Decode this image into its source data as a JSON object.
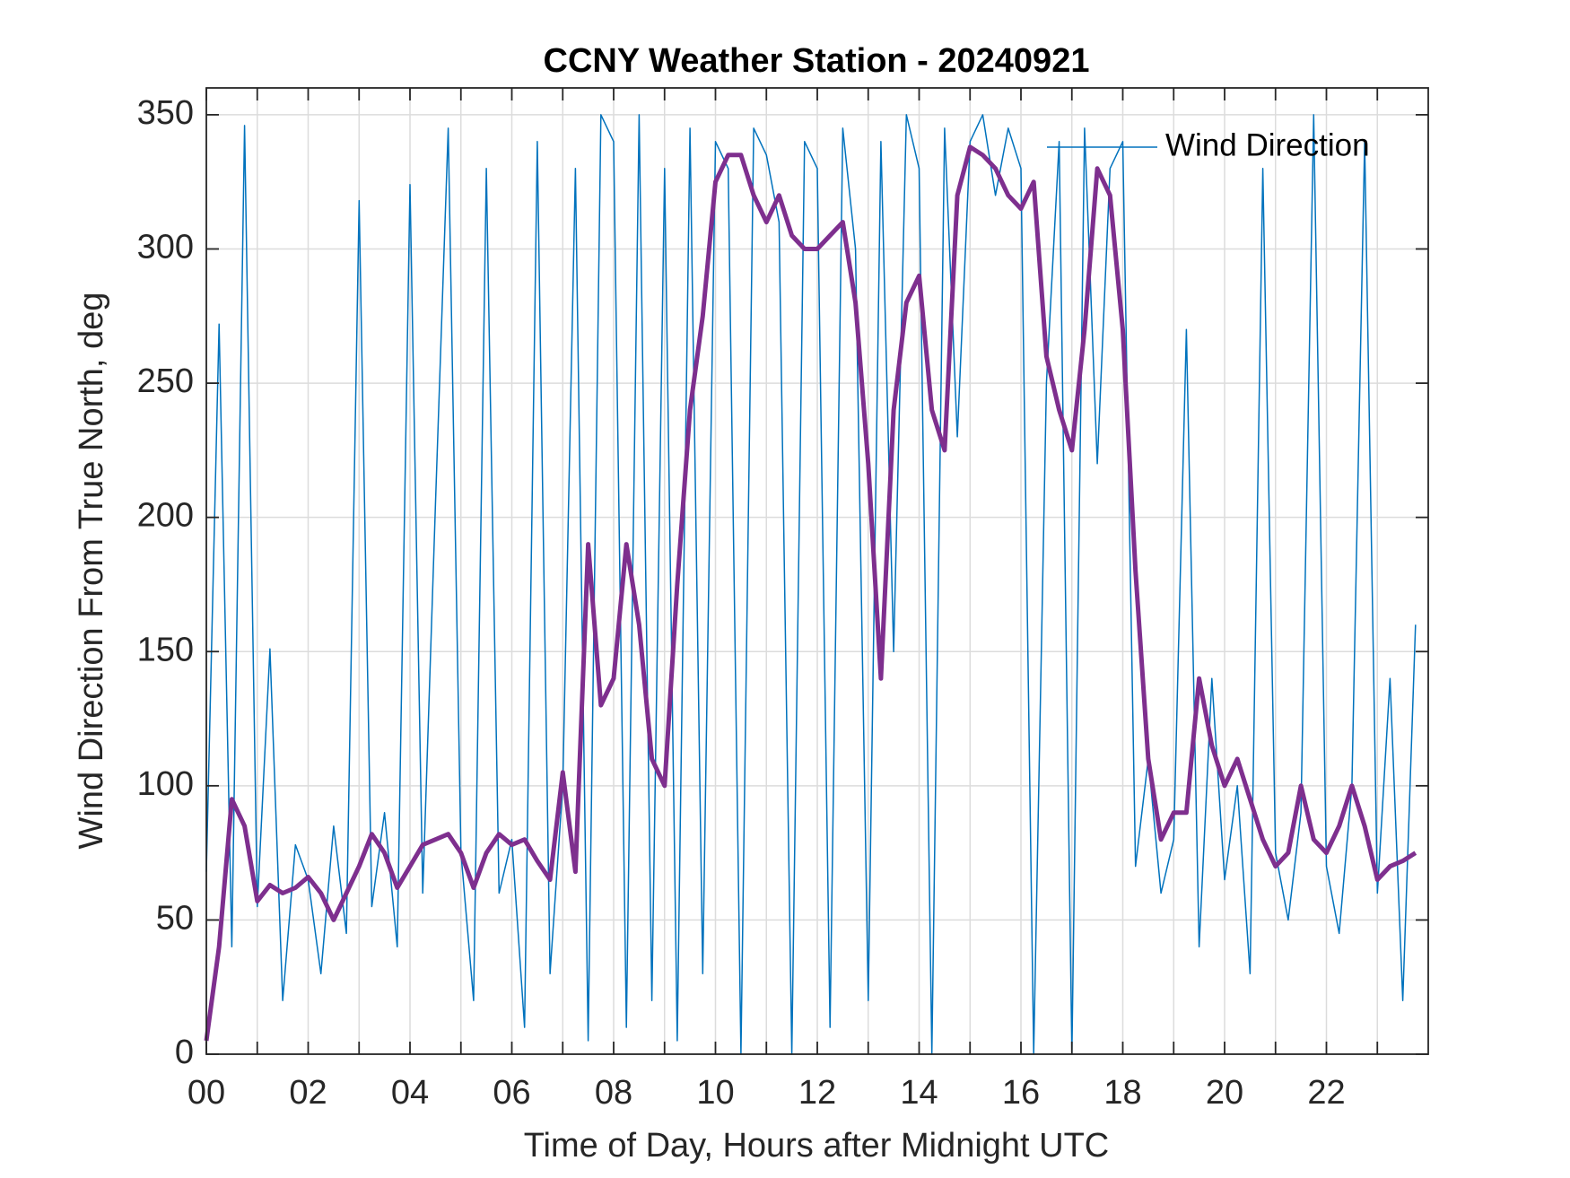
{
  "chart_data": {
    "type": "line",
    "title": "CCNY Weather Station - 20240921",
    "xlabel": "Time of Day, Hours after Midnight UTC",
    "ylabel": "Wind Direction From True North, deg",
    "x": [
      0,
      0.25,
      0.5,
      0.75,
      1,
      1.25,
      1.5,
      1.75,
      2,
      2.25,
      2.5,
      2.75,
      3,
      3.25,
      3.5,
      3.75,
      4,
      4.25,
      4.5,
      4.75,
      5,
      5.25,
      5.5,
      5.75,
      6,
      6.25,
      6.5,
      6.75,
      7,
      7.25,
      7.5,
      7.75,
      8,
      8.25,
      8.5,
      8.75,
      9,
      9.25,
      9.5,
      9.75,
      10,
      10.25,
      10.5,
      10.75,
      11,
      11.25,
      11.5,
      11.75,
      12,
      12.25,
      12.5,
      12.75,
      13,
      13.25,
      13.5,
      13.75,
      14,
      14.25,
      14.5,
      14.75,
      15,
      15.25,
      15.5,
      15.75,
      16,
      16.25,
      16.5,
      16.75,
      17,
      17.25,
      17.5,
      17.75,
      18,
      18.25,
      18.5,
      18.75,
      19,
      19.25,
      19.5,
      19.75,
      20,
      20.25,
      20.5,
      20.75,
      21,
      21.25,
      21.5,
      21.75,
      22,
      22.25,
      22.5,
      22.75,
      23,
      23.25,
      23.5,
      23.75
    ],
    "series": [
      {
        "name": "Wind Direction",
        "color": "#0072bd",
        "width": 1.5,
        "values": [
          68,
          272,
          40,
          346,
          55,
          151,
          20,
          78,
          65,
          30,
          85,
          45,
          318,
          55,
          90,
          40,
          324,
          60,
          205,
          345,
          75,
          20,
          330,
          60,
          80,
          10,
          340,
          30,
          100,
          330,
          5,
          350,
          340,
          10,
          350,
          20,
          330,
          5,
          345,
          30,
          340,
          330,
          0,
          345,
          335,
          310,
          0,
          340,
          330,
          10,
          345,
          300,
          20,
          340,
          150,
          350,
          330,
          0,
          345,
          230,
          340,
          350,
          320,
          345,
          330,
          0,
          250,
          340,
          0,
          345,
          220,
          330,
          340,
          70,
          110,
          60,
          80,
          270,
          40,
          140,
          65,
          100,
          30,
          330,
          75,
          50,
          90,
          350,
          70,
          45,
          100,
          340,
          60,
          140,
          20,
          160
        ]
      },
      {
        "color": "#7e2f8e",
        "width": 5,
        "values": [
          5,
          40,
          95,
          85,
          57,
          63,
          60,
          62,
          66,
          60,
          50,
          60,
          70,
          82,
          75,
          62,
          70,
          78,
          80,
          82,
          75,
          62,
          75,
          82,
          78,
          80,
          72,
          65,
          105,
          68,
          190,
          130,
          140,
          190,
          160,
          110,
          100,
          175,
          240,
          275,
          325,
          335,
          335,
          320,
          310,
          320,
          305,
          300,
          300,
          305,
          310,
          280,
          220,
          140,
          240,
          280,
          290,
          240,
          225,
          320,
          338,
          335,
          330,
          320,
          315,
          325,
          260,
          240,
          225,
          270,
          330,
          320,
          270,
          180,
          110,
          80,
          90,
          90,
          140,
          115,
          100,
          110,
          95,
          80,
          70,
          75,
          100,
          80,
          75,
          85,
          100,
          85,
          65,
          70,
          72,
          75
        ]
      }
    ],
    "xlim": [
      0,
      24
    ],
    "xticks": [
      {
        "value": 0,
        "label": "00"
      },
      {
        "value": 2,
        "label": "02"
      },
      {
        "value": 4,
        "label": "04"
      },
      {
        "value": 6,
        "label": "06"
      },
      {
        "value": 8,
        "label": "08"
      },
      {
        "value": 10,
        "label": "10"
      },
      {
        "value": 12,
        "label": "12"
      },
      {
        "value": 14,
        "label": "14"
      },
      {
        "value": 16,
        "label": "16"
      },
      {
        "value": 18,
        "label": "18"
      },
      {
        "value": 20,
        "label": "20"
      },
      {
        "value": 22,
        "label": "22"
      }
    ],
    "xminorticks": [
      1,
      3,
      5,
      7,
      9,
      11,
      13,
      15,
      17,
      19,
      21,
      23
    ],
    "ylim": [
      0,
      360
    ],
    "yticks": [
      0,
      50,
      100,
      150,
      200,
      250,
      300,
      350
    ],
    "grid": true,
    "legend": "top-right"
  }
}
